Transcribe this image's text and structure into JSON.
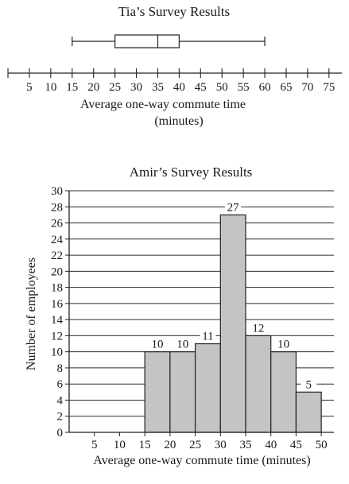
{
  "chart_data": [
    {
      "type": "boxplot",
      "title": "Tia’s Survey Results",
      "xlabel_line1": "Average one-way commute time",
      "xlabel_line2": "(minutes)",
      "x_ticks": [
        5,
        10,
        15,
        20,
        25,
        30,
        35,
        40,
        45,
        50,
        55,
        60,
        65,
        70,
        75
      ],
      "xlim": [
        0,
        78
      ],
      "box": {
        "min": 15,
        "q1": 25,
        "median": 35,
        "q3": 40,
        "max": 60
      }
    },
    {
      "type": "bar",
      "title": "Amir’s Survey Results",
      "xlabel": "Average one-way commute time (minutes)",
      "ylabel": "Number of employees",
      "x_ticks": [
        5,
        10,
        15,
        20,
        25,
        30,
        35,
        40,
        45,
        50
      ],
      "y_ticks": [
        0,
        2,
        4,
        6,
        8,
        10,
        12,
        14,
        16,
        18,
        20,
        22,
        24,
        26,
        28,
        30
      ],
      "ylim": [
        0,
        30
      ],
      "xlim": [
        0,
        52.5
      ],
      "grid": true,
      "bins": [
        {
          "start": 15,
          "end": 20,
          "value": 10
        },
        {
          "start": 20,
          "end": 25,
          "value": 10
        },
        {
          "start": 25,
          "end": 30,
          "value": 11
        },
        {
          "start": 30,
          "end": 35,
          "value": 27
        },
        {
          "start": 35,
          "end": 40,
          "value": 12
        },
        {
          "start": 40,
          "end": 45,
          "value": 10
        },
        {
          "start": 45,
          "end": 50,
          "value": 5
        }
      ],
      "bar_color": "#c4c4c4"
    }
  ]
}
